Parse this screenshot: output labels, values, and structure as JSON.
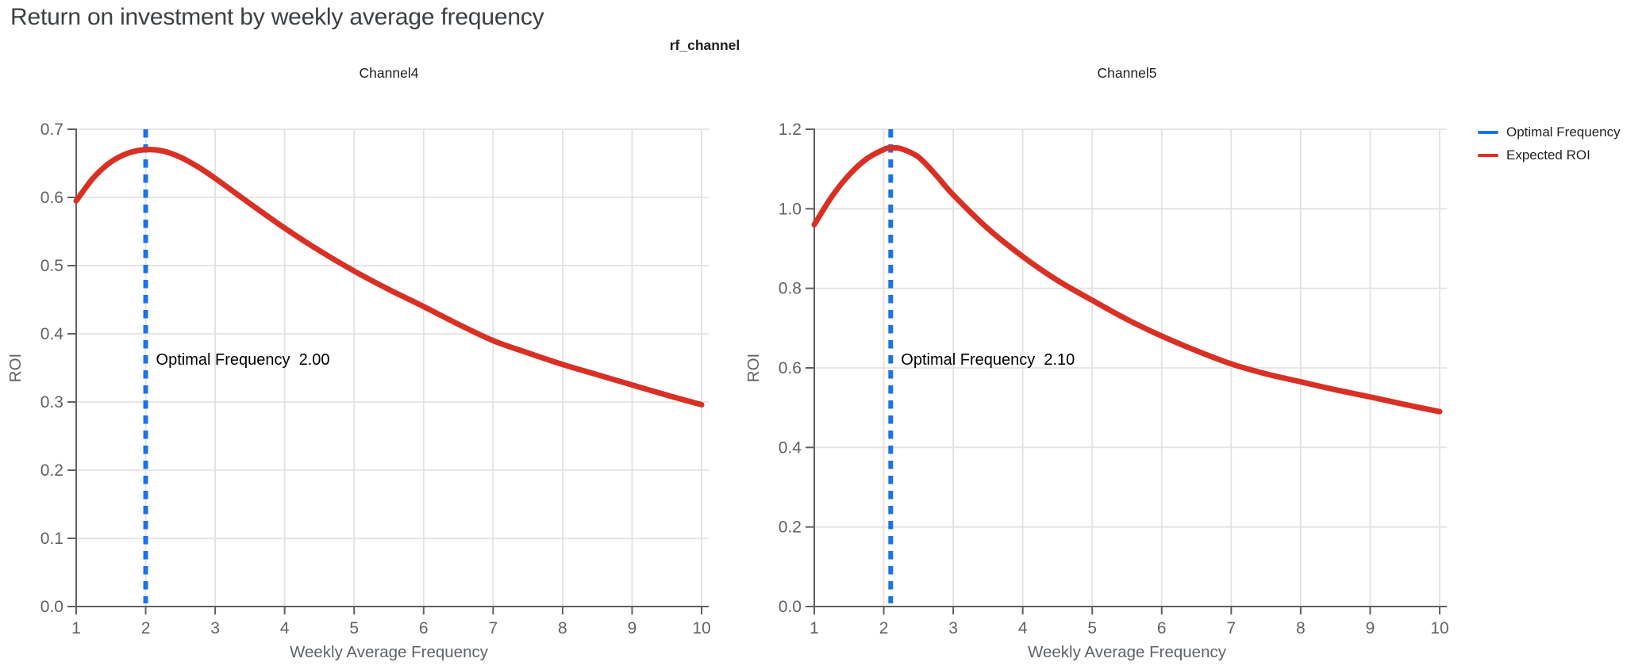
{
  "page_title": "Return on investment by weekly average frequency",
  "facet_title": "rf_channel",
  "legend": {
    "items": [
      {
        "label": "Optimal Frequency",
        "color": "#1a73e8"
      },
      {
        "label": "Expected ROI",
        "color": "#d93025"
      }
    ]
  },
  "colors": {
    "expected_roi": "#d93025",
    "optimal_frequency": "#1a73e8",
    "grid": "#e2e2e2",
    "axis": "#616161",
    "tick_label": "#5f6368",
    "axis_label": "#5f6368",
    "subplot_title": "#202124",
    "annotation": "#000000",
    "title": "#3c4043"
  },
  "chart_data": [
    {
      "type": "line",
      "title": "Channel4",
      "xlabel": "Weekly Average Frequency",
      "ylabel": "ROI",
      "xlim": [
        1,
        10
      ],
      "ylim": [
        0,
        0.7
      ],
      "xticks": [
        1,
        2,
        3,
        4,
        5,
        6,
        7,
        8,
        9,
        10
      ],
      "yticks": [
        0.0,
        0.1,
        0.2,
        0.3,
        0.4,
        0.5,
        0.6,
        0.7
      ],
      "grid": true,
      "legend_position": "top-right-outside",
      "optimal_frequency": 2.0,
      "annotation": {
        "label": "Optimal Frequency",
        "value": "2.00"
      },
      "series": [
        {
          "name": "Expected ROI",
          "x": [
            1,
            1.25,
            1.5,
            1.75,
            2,
            2.25,
            2.5,
            2.75,
            3,
            3.5,
            4,
            4.5,
            5,
            5.5,
            6,
            6.5,
            7,
            7.5,
            8,
            8.5,
            9,
            9.5,
            10
          ],
          "y": [
            0.595,
            0.629,
            0.652,
            0.665,
            0.67,
            0.668,
            0.659,
            0.645,
            0.628,
            0.591,
            0.555,
            0.522,
            0.492,
            0.465,
            0.44,
            0.414,
            0.39,
            0.372,
            0.355,
            0.34,
            0.325,
            0.31,
            0.296
          ]
        }
      ]
    },
    {
      "type": "line",
      "title": "Channel5",
      "xlabel": "Weekly Average Frequency",
      "ylabel": "ROI",
      "xlim": [
        1,
        10
      ],
      "ylim": [
        0,
        1.2
      ],
      "xticks": [
        1,
        2,
        3,
        4,
        5,
        6,
        7,
        8,
        9,
        10
      ],
      "yticks": [
        0.0,
        0.2,
        0.4,
        0.6,
        0.8,
        1.0,
        1.2
      ],
      "grid": true,
      "legend_position": "top-right-outside",
      "optimal_frequency": 2.1,
      "annotation": {
        "label": "Optimal Frequency",
        "value": "2.10"
      },
      "series": [
        {
          "name": "Expected ROI",
          "x": [
            1,
            1.25,
            1.5,
            1.75,
            2,
            2.1,
            2.25,
            2.5,
            2.75,
            3,
            3.5,
            4,
            4.5,
            5,
            5.5,
            6,
            6.5,
            7,
            7.5,
            8,
            8.5,
            9,
            9.5,
            10
          ],
          "y": [
            0.96,
            1.03,
            1.085,
            1.125,
            1.149,
            1.153,
            1.151,
            1.13,
            1.085,
            1.035,
            0.95,
            0.88,
            0.82,
            0.77,
            0.722,
            0.68,
            0.643,
            0.61,
            0.585,
            0.565,
            0.545,
            0.527,
            0.508,
            0.49
          ]
        }
      ]
    }
  ]
}
